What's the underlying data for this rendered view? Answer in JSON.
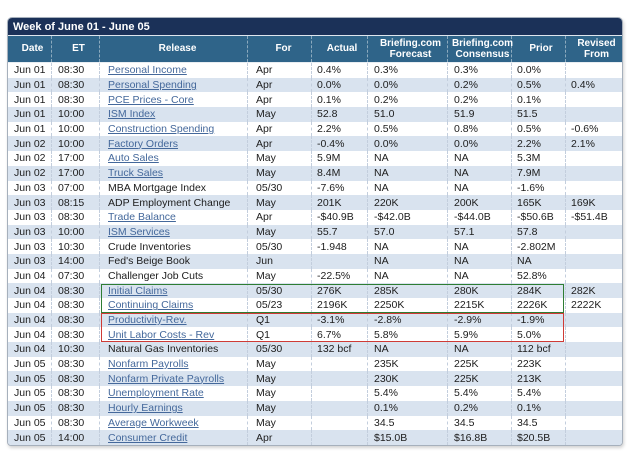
{
  "title_bar": {
    "label": "Week of June 01 - June 05"
  },
  "colors": {
    "title_bar_bg": "#1b3158",
    "header_bg": "#2f6489",
    "row_stripe": "#d9e3ef",
    "link": "#44689b",
    "green_box_border": "#2e7d33",
    "red_box_border": "#cf3b36"
  },
  "table": {
    "columns": [
      {
        "key": "date",
        "label": "Date"
      },
      {
        "key": "et",
        "label": "ET"
      },
      {
        "key": "release",
        "label": "Release"
      },
      {
        "key": "for",
        "label": "For"
      },
      {
        "key": "actual",
        "label": "Actual"
      },
      {
        "key": "forecast",
        "label": "Briefing.com Forecast"
      },
      {
        "key": "consensus",
        "label": "Briefing.com Consensus"
      },
      {
        "key": "prior",
        "label": "Prior"
      },
      {
        "key": "revised",
        "label": "Revised From"
      }
    ],
    "rows": [
      {
        "date": "Jun 01",
        "et": "08:30",
        "release": "Personal Income",
        "link": true,
        "for": "Apr",
        "actual": "0.4%",
        "forecast": "0.3%",
        "consensus": "0.3%",
        "prior": "0.0%",
        "revised": ""
      },
      {
        "date": "Jun 01",
        "et": "08:30",
        "release": "Personal Spending",
        "link": true,
        "for": "Apr",
        "actual": "0.0%",
        "forecast": "0.0%",
        "consensus": "0.2%",
        "prior": "0.5%",
        "revised": "0.4%"
      },
      {
        "date": "Jun 01",
        "et": "08:30",
        "release": "PCE Prices - Core",
        "link": true,
        "for": "Apr",
        "actual": "0.1%",
        "forecast": "0.2%",
        "consensus": "0.2%",
        "prior": "0.1%",
        "revised": ""
      },
      {
        "date": "Jun 01",
        "et": "10:00",
        "release": "ISM Index",
        "link": true,
        "for": "May",
        "actual": "52.8",
        "forecast": "51.0",
        "consensus": "51.9",
        "prior": "51.5",
        "revised": ""
      },
      {
        "date": "Jun 01",
        "et": "10:00",
        "release": "Construction Spending",
        "link": true,
        "for": "Apr",
        "actual": "2.2%",
        "forecast": "0.5%",
        "consensus": "0.8%",
        "prior": "0.5%",
        "revised": "-0.6%"
      },
      {
        "date": "Jun 02",
        "et": "10:00",
        "release": "Factory Orders",
        "link": true,
        "for": "Apr",
        "actual": "-0.4%",
        "forecast": "0.0%",
        "consensus": "0.0%",
        "prior": "2.2%",
        "revised": "2.1%"
      },
      {
        "date": "Jun 02",
        "et": "17:00",
        "release": "Auto Sales",
        "link": true,
        "for": "May",
        "actual": "5.9M",
        "forecast": "NA",
        "consensus": "NA",
        "prior": "5.3M",
        "revised": ""
      },
      {
        "date": "Jun 02",
        "et": "17:00",
        "release": "Truck Sales",
        "link": true,
        "for": "May",
        "actual": "8.4M",
        "forecast": "NA",
        "consensus": "NA",
        "prior": "7.9M",
        "revised": ""
      },
      {
        "date": "Jun 03",
        "et": "07:00",
        "release": "MBA Mortgage Index",
        "link": false,
        "for": "05/30",
        "actual": "-7.6%",
        "forecast": "NA",
        "consensus": "NA",
        "prior": "-1.6%",
        "revised": ""
      },
      {
        "date": "Jun 03",
        "et": "08:15",
        "release": "ADP Employment Change",
        "link": false,
        "for": "May",
        "actual": "201K",
        "forecast": "220K",
        "consensus": "200K",
        "prior": "165K",
        "revised": "169K"
      },
      {
        "date": "Jun 03",
        "et": "08:30",
        "release": "Trade Balance",
        "link": true,
        "for": "Apr",
        "actual": "-$40.9B",
        "forecast": "-$42.0B",
        "consensus": "-$44.0B",
        "prior": "-$50.6B",
        "revised": "-$51.4B"
      },
      {
        "date": "Jun 03",
        "et": "10:00",
        "release": "ISM Services",
        "link": true,
        "for": "May",
        "actual": "55.7",
        "forecast": "57.0",
        "consensus": "57.1",
        "prior": "57.8",
        "revised": ""
      },
      {
        "date": "Jun 03",
        "et": "10:30",
        "release": "Crude Inventories",
        "link": false,
        "for": "05/30",
        "actual": "-1.948",
        "forecast": "NA",
        "consensus": "NA",
        "prior": "-2.802M",
        "revised": ""
      },
      {
        "date": "Jun 03",
        "et": "14:00",
        "release": "Fed's Beige Book",
        "link": false,
        "for": "Jun",
        "actual": "",
        "forecast": "NA",
        "consensus": "NA",
        "prior": "NA",
        "revised": ""
      },
      {
        "date": "Jun 04",
        "et": "07:30",
        "release": "Challenger Job Cuts",
        "link": false,
        "for": "May",
        "actual": "-22.5%",
        "forecast": "NA",
        "consensus": "NA",
        "prior": "52.8%",
        "revised": ""
      },
      {
        "date": "Jun 04",
        "et": "08:30",
        "release": "Initial Claims",
        "link": true,
        "for": "05/30",
        "actual": "276K",
        "forecast": "285K",
        "consensus": "280K",
        "prior": "284K",
        "revised": "282K"
      },
      {
        "date": "Jun 04",
        "et": "08:30",
        "release": "Continuing Claims",
        "link": true,
        "for": "05/23",
        "actual": "2196K",
        "forecast": "2250K",
        "consensus": "2215K",
        "prior": "2226K",
        "revised": "2222K"
      },
      {
        "date": "Jun 04",
        "et": "08:30",
        "release": "Productivity-Rev.",
        "link": true,
        "for": "Q1",
        "actual": "-3.1%",
        "forecast": "-2.8%",
        "consensus": "-2.9%",
        "prior": "-1.9%",
        "revised": ""
      },
      {
        "date": "Jun 04",
        "et": "08:30",
        "release": "Unit Labor Costs - Rev",
        "link": true,
        "for": "Q1",
        "actual": "6.7%",
        "forecast": "5.8%",
        "consensus": "5.9%",
        "prior": "5.0%",
        "revised": ""
      },
      {
        "date": "Jun 04",
        "et": "10:30",
        "release": "Natural Gas Inventories",
        "link": false,
        "for": "05/30",
        "actual": "132 bcf",
        "forecast": "NA",
        "consensus": "NA",
        "prior": "112 bcf",
        "revised": ""
      },
      {
        "date": "Jun 05",
        "et": "08:30",
        "release": "Nonfarm Payrolls",
        "link": true,
        "for": "May",
        "actual": "",
        "forecast": "235K",
        "consensus": "225K",
        "prior": "223K",
        "revised": ""
      },
      {
        "date": "Jun 05",
        "et": "08:30",
        "release": "Nonfarm Private Payrolls",
        "link": true,
        "for": "May",
        "actual": "",
        "forecast": "230K",
        "consensus": "225K",
        "prior": "213K",
        "revised": ""
      },
      {
        "date": "Jun 05",
        "et": "08:30",
        "release": "Unemployment Rate",
        "link": true,
        "for": "May",
        "actual": "",
        "forecast": "5.4%",
        "consensus": "5.4%",
        "prior": "5.4%",
        "revised": ""
      },
      {
        "date": "Jun 05",
        "et": "08:30",
        "release": "Hourly Earnings",
        "link": true,
        "for": "May",
        "actual": "",
        "forecast": "0.1%",
        "consensus": "0.2%",
        "prior": "0.1%",
        "revised": ""
      },
      {
        "date": "Jun 05",
        "et": "08:30",
        "release": "Average Workweek",
        "link": true,
        "for": "May",
        "actual": "",
        "forecast": "34.5",
        "consensus": "34.5",
        "prior": "34.5",
        "revised": ""
      },
      {
        "date": "Jun 05",
        "et": "14:00",
        "release": "Consumer Credit",
        "link": true,
        "for": "Apr",
        "actual": "",
        "forecast": "$15.0B",
        "consensus": "$16.8B",
        "prior": "$20.5B",
        "revised": ""
      }
    ]
  },
  "annotations": [
    {
      "id": "green-highlight-box",
      "color": "#2e7d33",
      "row_start": 15,
      "row_end": 16,
      "rows": [
        "Initial Claims",
        "Continuing Claims"
      ]
    },
    {
      "id": "red-highlight-box",
      "color": "#cf3b36",
      "row_start": 17,
      "row_end": 18,
      "rows": [
        "Productivity-Rev.",
        "Unit Labor Costs - Rev"
      ]
    }
  ]
}
